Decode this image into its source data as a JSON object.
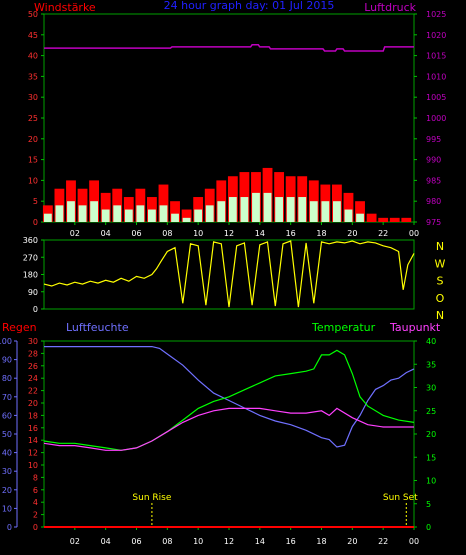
{
  "header": {
    "left_label": "Windstärke",
    "title": "24 hour graph day: 01 Jul 2015",
    "right_label": "Luftdruck"
  },
  "x_tick_labels": [
    "02",
    "04",
    "06",
    "08",
    "10",
    "12",
    "14",
    "16",
    "18",
    "20",
    "22",
    "00"
  ],
  "colors": {
    "wind_gust": "#ff0000",
    "wind_avg": "#ccffcc",
    "pressure": "#c000c0",
    "direction": "#ffff00",
    "rain": "#ff0000",
    "humidity": "#7070ff",
    "temperature": "#00ff00",
    "dewpoint": "#ff40ff",
    "sun": "#ffff00",
    "grid": "#00c000",
    "title": "#2020ff"
  },
  "chart_data": [
    {
      "type": "bar",
      "name": "wind-pressure",
      "x_range": [
        0,
        24
      ],
      "y_left_ticks": [
        0,
        5,
        10,
        15,
        20,
        25,
        30,
        35,
        40,
        45,
        50
      ],
      "y_left_range": [
        0,
        50
      ],
      "y_right_ticks": [
        975,
        980,
        985,
        990,
        995,
        1000,
        1005,
        1010,
        1015,
        1020,
        1025
      ],
      "y_right_range": [
        975,
        1025
      ],
      "series": [
        {
          "key": "gust",
          "x": [
            0.25,
            1,
            1.75,
            2.5,
            3.25,
            4,
            4.75,
            5.5,
            6.25,
            7,
            7.75,
            8.5,
            9.25,
            10,
            10.75,
            11.5,
            12.25,
            13,
            13.75,
            14.5,
            15.25,
            16,
            16.75,
            17.5,
            18.25,
            19,
            19.75,
            20.5,
            21.25,
            22,
            22.75,
            23.5
          ],
          "values": [
            4,
            8,
            10,
            8,
            10,
            7,
            8,
            6,
            8,
            6,
            9,
            5,
            3,
            6,
            8,
            10,
            11,
            12,
            12,
            13,
            12,
            11,
            11,
            10,
            9,
            9,
            7,
            5,
            2,
            1,
            1,
            1
          ]
        },
        {
          "key": "avg",
          "x": [
            0.25,
            1,
            1.75,
            2.5,
            3.25,
            4,
            4.75,
            5.5,
            6.25,
            7,
            7.75,
            8.5,
            9.25,
            10,
            10.75,
            11.5,
            12.25,
            13,
            13.75,
            14.5,
            15.25,
            16,
            16.75,
            17.5,
            18.25,
            19,
            19.75,
            20.5,
            21.25,
            22,
            22.75,
            23.5
          ],
          "values": [
            2,
            4,
            5,
            4,
            5,
            3,
            4,
            3,
            4,
            3,
            4,
            2,
            1,
            3,
            4,
            5,
            6,
            6,
            7,
            7,
            6,
            6,
            6,
            5,
            5,
            5,
            3,
            2,
            0,
            0,
            0,
            0
          ]
        },
        {
          "key": "pressure",
          "x": [
            0,
            8.2,
            8.3,
            13.4,
            13.5,
            13.9,
            14,
            14.6,
            14.7,
            18.1,
            18.2,
            18.9,
            19,
            19.4,
            19.5,
            22,
            22.1,
            24
          ],
          "values": [
            1016.8,
            1016.8,
            1017.1,
            1017.1,
            1017.6,
            1017.6,
            1017.1,
            1017.1,
            1016.6,
            1016.6,
            1016.1,
            1016.1,
            1016.6,
            1016.6,
            1016.1,
            1016.1,
            1017.1,
            1017.1
          ]
        }
      ]
    },
    {
      "type": "line",
      "name": "wind-direction",
      "x_range": [
        0,
        24
      ],
      "y_ticks": [
        0,
        90,
        180,
        270,
        360
      ],
      "y_range": [
        0,
        360
      ],
      "compass_labels": [
        "N",
        "W",
        "S",
        "O",
        "N"
      ],
      "series": [
        {
          "key": "direction",
          "x": [
            0,
            0.5,
            1,
            1.5,
            2,
            2.5,
            3,
            3.5,
            4,
            4.5,
            5,
            5.5,
            6,
            6.5,
            7,
            7.3,
            7.6,
            8,
            8.5,
            9,
            9.5,
            10,
            10.5,
            11,
            11.5,
            12,
            12.5,
            13,
            13.5,
            14,
            14.5,
            15,
            15.5,
            16,
            16.5,
            17,
            17.5,
            18,
            18.5,
            19,
            19.5,
            20,
            20.5,
            21,
            21.5,
            22,
            22.5,
            23,
            23.3,
            23.6,
            24
          ],
          "values": [
            130,
            120,
            135,
            125,
            140,
            130,
            145,
            135,
            150,
            140,
            160,
            145,
            170,
            160,
            180,
            210,
            250,
            300,
            320,
            30,
            340,
            330,
            20,
            350,
            340,
            10,
            330,
            345,
            20,
            335,
            350,
            15,
            340,
            355,
            10,
            345,
            30,
            350,
            340,
            350,
            345,
            355,
            340,
            350,
            345,
            330,
            320,
            300,
            100,
            230,
            290
          ]
        }
      ]
    },
    {
      "type": "line",
      "name": "climate",
      "x_range": [
        0,
        24
      ],
      "regen_ticks": [
        0,
        2,
        4,
        6,
        8,
        10,
        12,
        14,
        16,
        18,
        20,
        22,
        24,
        26,
        28,
        30
      ],
      "luftfeuchte_ticks": [
        0,
        10,
        20,
        30,
        40,
        50,
        60,
        70,
        80,
        90,
        100
      ],
      "temperature_ticks": [
        0,
        5,
        10,
        15,
        20,
        25,
        30,
        35,
        40
      ],
      "labels": {
        "regen": "Regen",
        "luftfeuchte": "Luftfeuchte",
        "temperatur": "Temperatur",
        "taupunkt": "Taupunkt",
        "sun_rise": "Sun Rise",
        "sun_set": "Sun Set"
      },
      "sun_rise_x": 7.0,
      "sun_set_x": 23.5,
      "series": [
        {
          "key": "humidity",
          "x": [
            0,
            2,
            4,
            6,
            7,
            7.5,
            8,
            9,
            10,
            11,
            12,
            13,
            14,
            15,
            16,
            17,
            18,
            18.5,
            19,
            19.5,
            20,
            20.5,
            21,
            21.5,
            22,
            22.5,
            23,
            23.5,
            24
          ],
          "values": [
            97,
            97,
            97,
            97,
            97,
            96,
            93,
            87,
            79,
            72,
            68,
            64,
            60,
            57,
            55,
            52,
            48,
            47,
            43,
            44,
            54,
            60,
            68,
            74,
            76,
            79,
            80,
            83,
            85
          ]
        },
        {
          "key": "temperature",
          "x": [
            0,
            1,
            2,
            3,
            4,
            5,
            6,
            7,
            8,
            9,
            10,
            11,
            12,
            13,
            14,
            15,
            16,
            17,
            17.5,
            18,
            18.5,
            19,
            19.5,
            20,
            20.5,
            21,
            22,
            23,
            24
          ],
          "values": [
            18.5,
            18,
            18,
            17.5,
            17,
            16.5,
            17,
            18.5,
            20.5,
            23,
            25.5,
            27,
            28,
            29.5,
            31,
            32.5,
            33,
            33.5,
            34,
            37,
            37,
            38,
            37,
            33,
            28,
            26,
            24,
            23,
            22.5
          ]
        },
        {
          "key": "dewpoint",
          "x": [
            0,
            1,
            2,
            3,
            4,
            5,
            6,
            7,
            8,
            9,
            10,
            11,
            12,
            13,
            14,
            15,
            16,
            17,
            18,
            18.5,
            19,
            20,
            21,
            22,
            23,
            24
          ],
          "values": [
            18,
            17.5,
            17.5,
            17,
            16.5,
            16.5,
            17,
            18.5,
            20.5,
            22.5,
            24,
            25,
            25.5,
            25.5,
            25.5,
            25,
            24.5,
            24.5,
            25,
            24,
            25.5,
            23.5,
            22,
            21.5,
            21.5,
            21.5
          ]
        },
        {
          "key": "rain",
          "x": [
            0,
            24
          ],
          "values": [
            0,
            0
          ]
        }
      ]
    }
  ]
}
